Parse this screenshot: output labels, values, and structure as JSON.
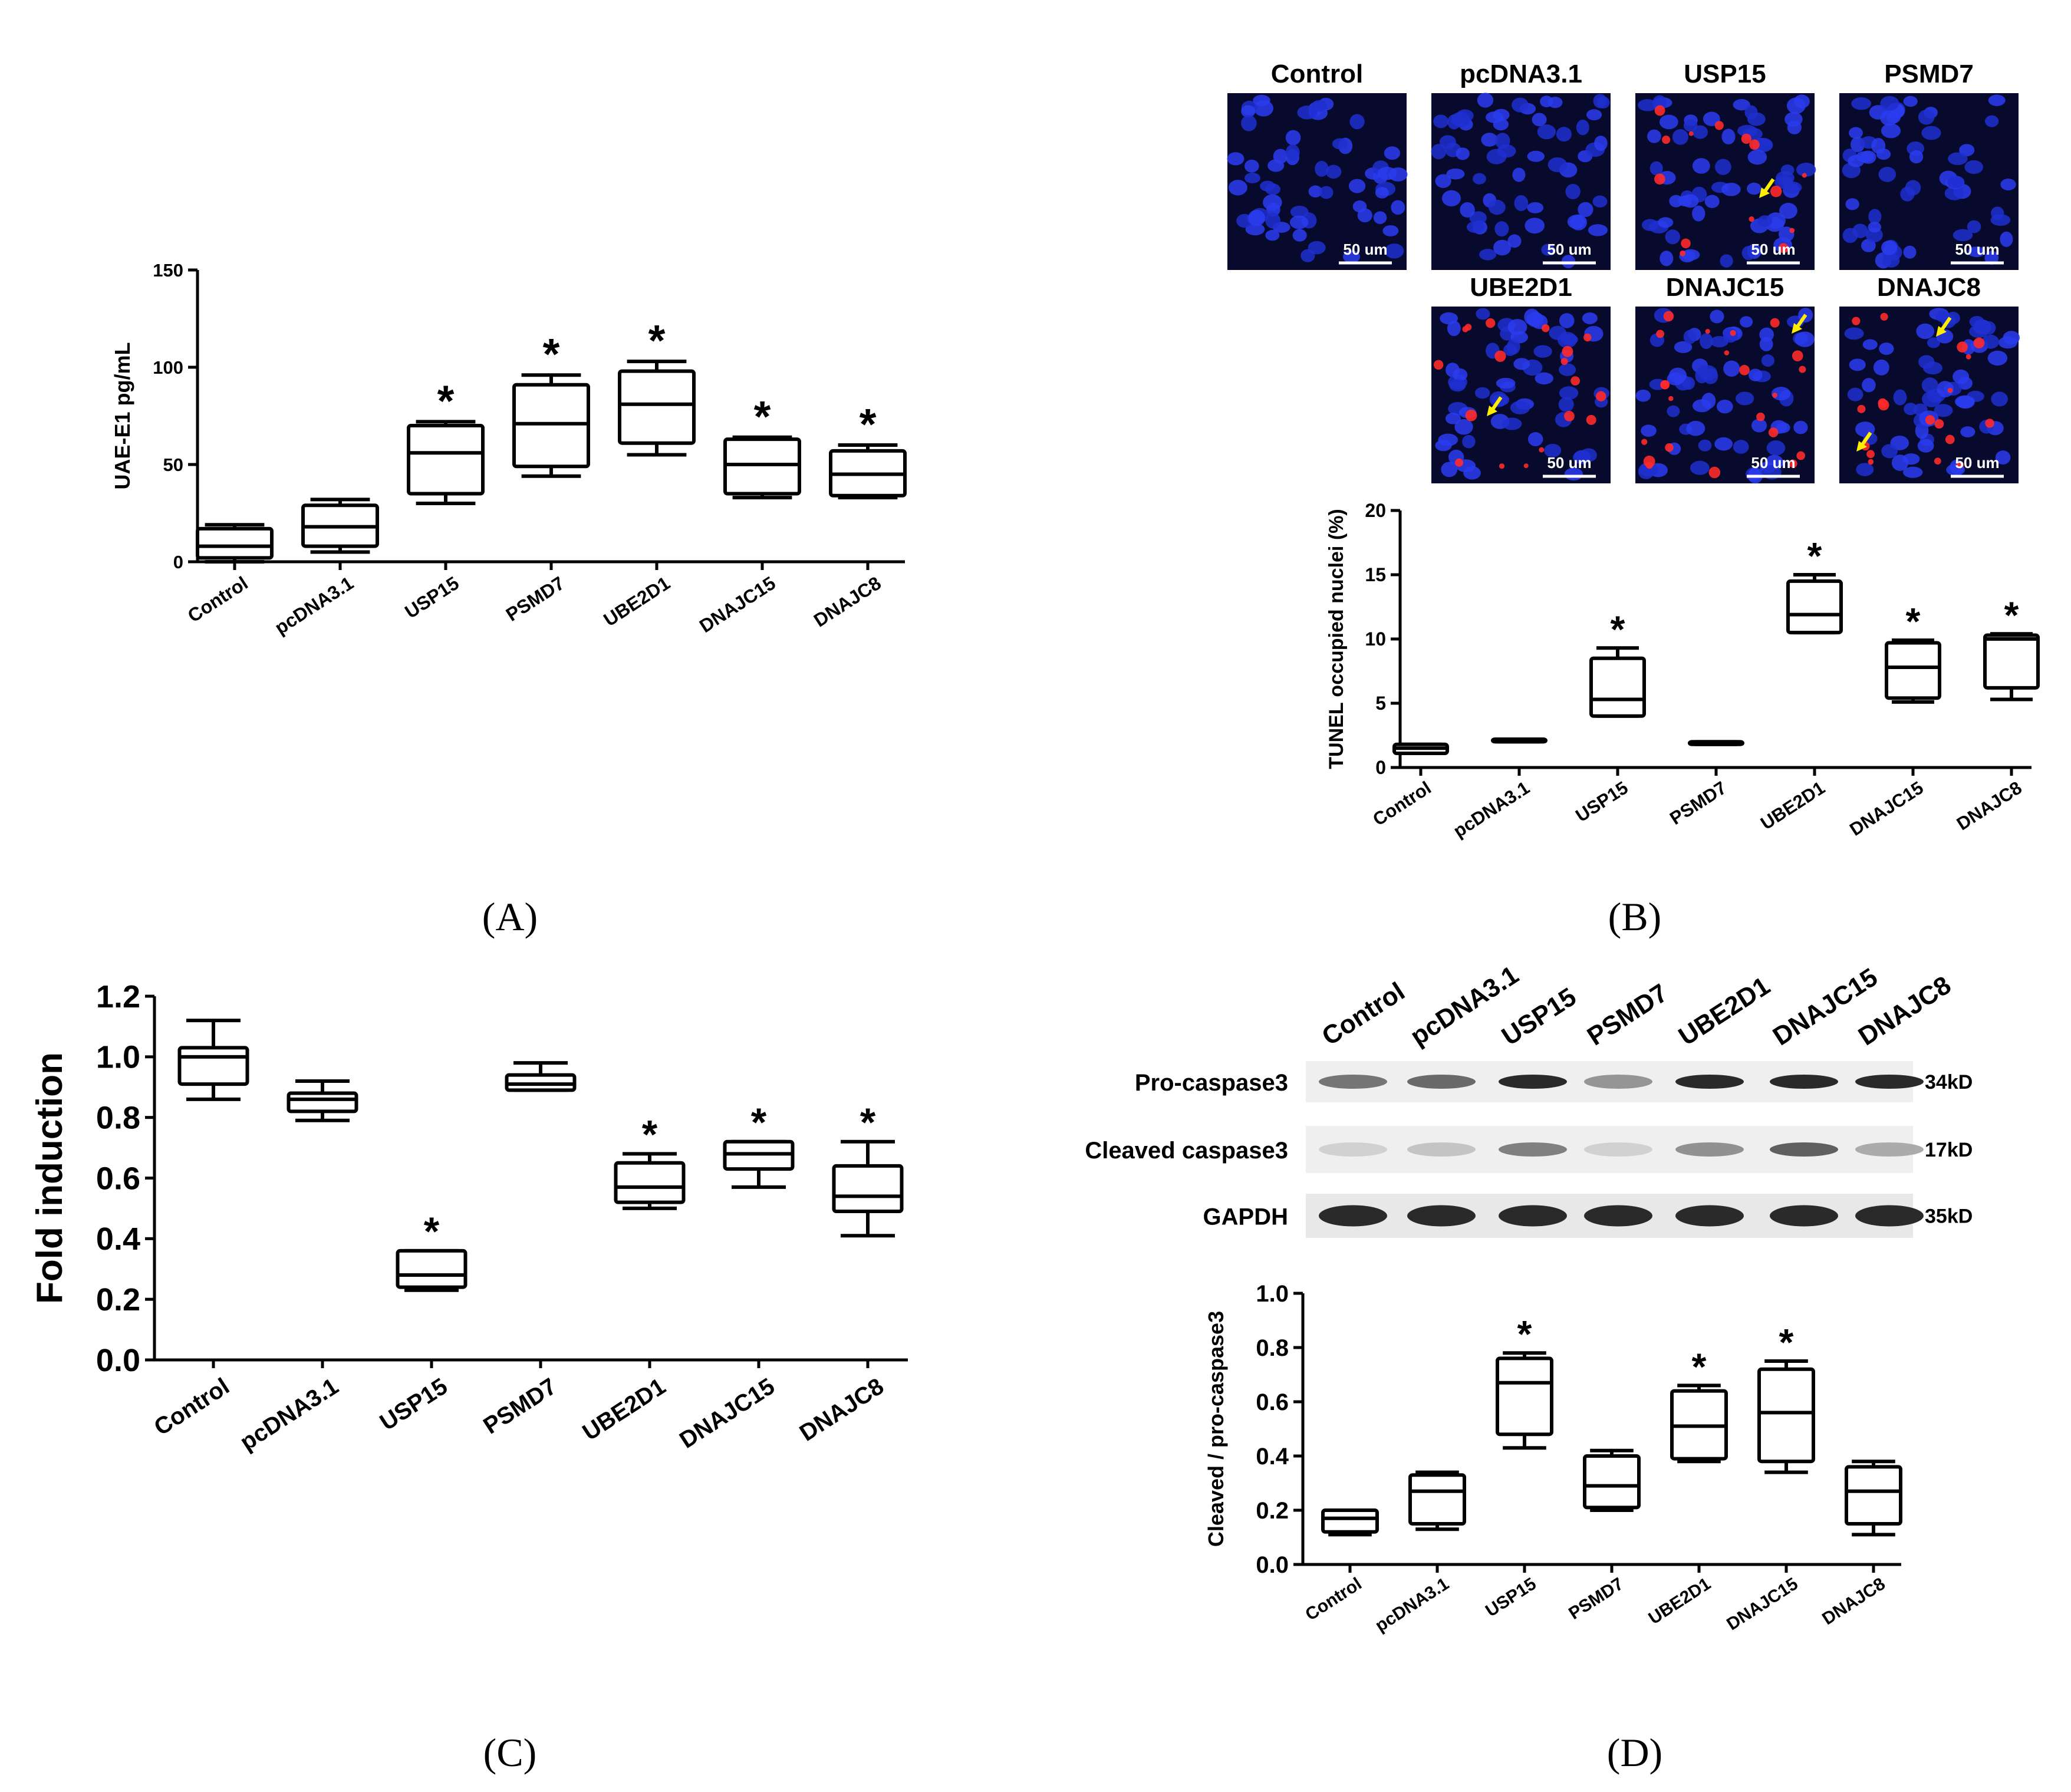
{
  "figure": {
    "panel_labels": [
      "(A)",
      "(B)",
      "(C)",
      "(D)"
    ],
    "star": "*",
    "categories": [
      "Control",
      "pcDNA3.1",
      "USP15",
      "PSMD7",
      "UBE2D1",
      "DNAJC15",
      "DNAJC8"
    ]
  },
  "chart_data": [
    {
      "id": "A",
      "type": "boxplot",
      "ylabel": "UAE-E1 pg/mL",
      "ylim": [
        0,
        150
      ],
      "yticks": [
        "0",
        "50",
        "100",
        "150"
      ],
      "categories": [
        "Control",
        "pcDNA3.1",
        "USP15",
        "PSMD7",
        "UBE2D1",
        "DNAJC15",
        "DNAJC8"
      ],
      "boxes": [
        {
          "min": 0,
          "q1": 2,
          "median": 8,
          "q3": 17,
          "max": 19,
          "sig": false
        },
        {
          "min": 5,
          "q1": 8,
          "median": 18,
          "q3": 29,
          "max": 32,
          "sig": false
        },
        {
          "min": 30,
          "q1": 35,
          "median": 56,
          "q3": 70,
          "max": 72,
          "sig": true
        },
        {
          "min": 44,
          "q1": 49,
          "median": 71,
          "q3": 91,
          "max": 96,
          "sig": true
        },
        {
          "min": 55,
          "q1": 61,
          "median": 81,
          "q3": 98,
          "max": 103,
          "sig": true
        },
        {
          "min": 33,
          "q1": 35,
          "median": 50,
          "q3": 63,
          "max": 64,
          "sig": true
        },
        {
          "min": 33,
          "q1": 34,
          "median": 45,
          "q3": 57,
          "max": 60,
          "sig": true
        }
      ]
    },
    {
      "id": "B",
      "type": "boxplot",
      "ylabel": "TUNEL occupied nuclei (%)",
      "ylim": [
        0,
        20
      ],
      "yticks": [
        "0",
        "5",
        "10",
        "15",
        "20"
      ],
      "categories": [
        "Control",
        "pcDNA3.1",
        "USP15",
        "PSMD7",
        "UBE2D1",
        "DNAJC15",
        "DNAJC8"
      ],
      "boxes": [
        {
          "min": 1.1,
          "q1": 1.1,
          "median": 1.5,
          "q3": 1.8,
          "max": 1.8,
          "sig": false
        },
        {
          "min": 2.0,
          "q1": 2.0,
          "median": 2.1,
          "q3": 2.2,
          "max": 2.2,
          "sig": false
        },
        {
          "min": 4.0,
          "q1": 4.0,
          "median": 5.3,
          "q3": 8.5,
          "max": 9.3,
          "sig": true
        },
        {
          "min": 1.8,
          "q1": 1.8,
          "median": 1.9,
          "q3": 2.0,
          "max": 2.0,
          "sig": false
        },
        {
          "min": 10.5,
          "q1": 10.5,
          "median": 11.9,
          "q3": 14.5,
          "max": 15.0,
          "sig": true
        },
        {
          "min": 5.1,
          "q1": 5.4,
          "median": 7.8,
          "q3": 9.7,
          "max": 9.9,
          "sig": true
        },
        {
          "min": 5.3,
          "q1": 6.2,
          "median": 10.0,
          "q3": 10.3,
          "max": 10.4,
          "sig": true
        }
      ],
      "images": {
        "top_labels": [
          "Control",
          "pcDNA3.1",
          "USP15",
          "PSMD7"
        ],
        "bottom_labels": [
          "UBE2D1",
          "DNAJC15",
          "DNAJC8"
        ],
        "scale_bar": "50 um"
      }
    },
    {
      "id": "C",
      "type": "boxplot",
      "ylabel": "Fold induction",
      "ylim": [
        0,
        1.2
      ],
      "yticks": [
        "0.0",
        "0.2",
        "0.4",
        "0.6",
        "0.8",
        "1.0",
        "1.2"
      ],
      "categories": [
        "Control",
        "pcDNA3.1",
        "USP15",
        "PSMD7",
        "UBE2D1",
        "DNAJC15",
        "DNAJC8"
      ],
      "boxes": [
        {
          "min": 0.86,
          "q1": 0.91,
          "median": 1.0,
          "q3": 1.03,
          "max": 1.12,
          "sig": false
        },
        {
          "min": 0.79,
          "q1": 0.82,
          "median": 0.86,
          "q3": 0.88,
          "max": 0.92,
          "sig": false
        },
        {
          "min": 0.23,
          "q1": 0.24,
          "median": 0.28,
          "q3": 0.36,
          "max": 0.36,
          "sig": true
        },
        {
          "min": 0.89,
          "q1": 0.89,
          "median": 0.91,
          "q3": 0.94,
          "max": 0.98,
          "sig": false
        },
        {
          "min": 0.5,
          "q1": 0.52,
          "median": 0.57,
          "q3": 0.65,
          "max": 0.68,
          "sig": true
        },
        {
          "min": 0.57,
          "q1": 0.63,
          "median": 0.68,
          "q3": 0.72,
          "max": 0.72,
          "sig": true
        },
        {
          "min": 0.41,
          "q1": 0.49,
          "median": 0.54,
          "q3": 0.64,
          "max": 0.72,
          "sig": true
        }
      ]
    },
    {
      "id": "D",
      "type": "boxplot",
      "ylabel": "Cleaved / pro-caspase3",
      "ylim": [
        0,
        1.0
      ],
      "yticks": [
        "0.0",
        "0.2",
        "0.4",
        "0.6",
        "0.8",
        "1.0"
      ],
      "categories": [
        "Control",
        "pcDNA3.1",
        "USP15",
        "PSMD7",
        "UBE2D1",
        "DNAJC15",
        "DNAJC8"
      ],
      "boxes": [
        {
          "min": 0.11,
          "q1": 0.12,
          "median": 0.17,
          "q3": 0.2,
          "max": 0.2,
          "sig": false
        },
        {
          "min": 0.13,
          "q1": 0.15,
          "median": 0.27,
          "q3": 0.33,
          "max": 0.34,
          "sig": false
        },
        {
          "min": 0.43,
          "q1": 0.48,
          "median": 0.67,
          "q3": 0.76,
          "max": 0.78,
          "sig": true
        },
        {
          "min": 0.2,
          "q1": 0.21,
          "median": 0.29,
          "q3": 0.4,
          "max": 0.42,
          "sig": false
        },
        {
          "min": 0.38,
          "q1": 0.39,
          "median": 0.51,
          "q3": 0.64,
          "max": 0.66,
          "sig": true
        },
        {
          "min": 0.34,
          "q1": 0.38,
          "median": 0.56,
          "q3": 0.72,
          "max": 0.75,
          "sig": true
        },
        {
          "min": 0.11,
          "q1": 0.15,
          "median": 0.27,
          "q3": 0.36,
          "max": 0.38,
          "sig": false
        }
      ],
      "blot": {
        "lane_labels": [
          "Control",
          "pcDNA3.1",
          "USP15",
          "PSMD7",
          "UBE2D1",
          "DNAJC15",
          "DNAJC8"
        ],
        "rows": [
          {
            "name": "Pro-caspase3",
            "size": "34kD",
            "intensity": [
              0.55,
              0.6,
              0.9,
              0.4,
              0.9,
              0.9,
              0.9
            ]
          },
          {
            "name": "Cleaved caspase3",
            "size": "17kD",
            "intensity": [
              0.12,
              0.18,
              0.5,
              0.12,
              0.42,
              0.65,
              0.3
            ]
          },
          {
            "name": "GAPDH",
            "size": "35kD",
            "intensity": [
              0.9,
              0.9,
              0.9,
              0.9,
              0.9,
              0.9,
              0.9
            ]
          }
        ]
      }
    }
  ]
}
